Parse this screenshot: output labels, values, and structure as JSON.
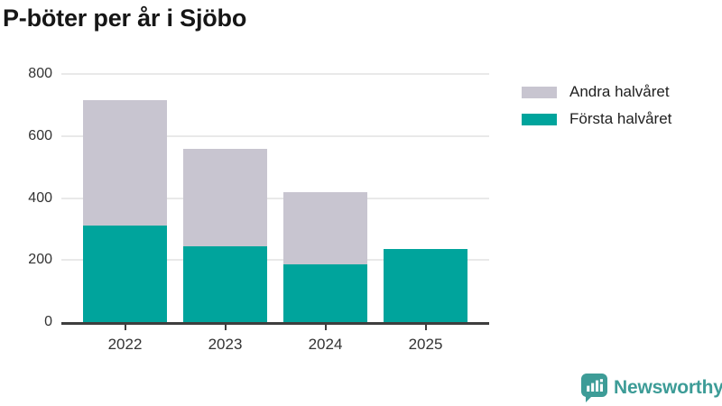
{
  "title": "P-böter per år i Sjöbo",
  "legend": {
    "items": [
      {
        "label": "Andra halvåret",
        "color": "#c8c5d0"
      },
      {
        "label": "Första halvåret",
        "color": "#00a49c"
      }
    ]
  },
  "chart_data": {
    "type": "bar",
    "stacked": true,
    "title": "P-böter per år i Sjöbo",
    "categories": [
      "2022",
      "2023",
      "2024",
      "2025"
    ],
    "series": [
      {
        "name": "Första halvåret",
        "color": "#00a49c",
        "values": [
          310,
          245,
          185,
          235
        ]
      },
      {
        "name": "Andra halvåret",
        "color": "#c8c5d0",
        "values": [
          405,
          315,
          235,
          0
        ]
      }
    ],
    "totals": [
      715,
      560,
      420,
      235
    ],
    "xlabel": "",
    "ylabel": "",
    "ylim": [
      0,
      800
    ],
    "y_ticks": [
      0,
      200,
      400,
      600,
      800
    ],
    "grid": true,
    "legend_position": "top-right",
    "axis_color": "#3e3e3e",
    "gridline_color": "#e9e9e9",
    "tick_label_color": "#333333"
  },
  "branding": {
    "logo_text": "Newsworthy",
    "logo_color": "#3d9c97",
    "logo_icon": "bar-chart-speech-bubble-icon"
  }
}
